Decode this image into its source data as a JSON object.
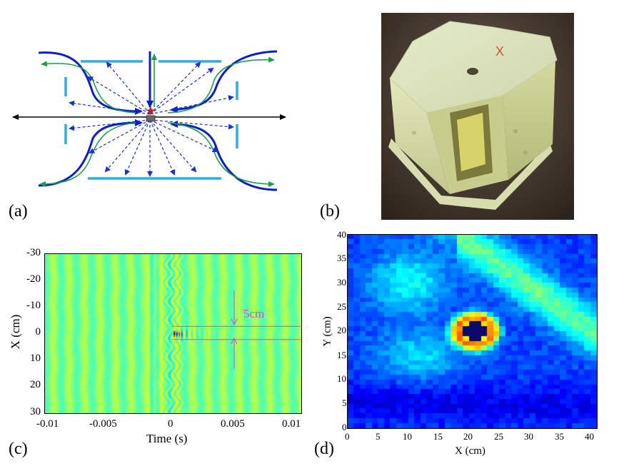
{
  "figure": {
    "panels": [
      {
        "id": "a",
        "label": "(a)"
      },
      {
        "id": "b",
        "label": "(b)"
      },
      {
        "id": "c",
        "label": "(c)"
      },
      {
        "id": "d",
        "label": "(d)"
      }
    ]
  },
  "photo": {
    "marking": "X"
  },
  "colors": {
    "field_blue": "#0a1fc8",
    "arrow_dashed_blue": "#1c2fd0",
    "green_line": "#1aa04a",
    "plate_cyan": "#2ab0e0",
    "star_red": "#c0202a",
    "annotation_magenta": "#e040e0"
  },
  "chart_data": [
    {
      "type": "heatmap",
      "panel": "c",
      "title": "",
      "xlabel": "Time (s)",
      "ylabel": "X (cm)",
      "xlim": [
        -0.01,
        0.01
      ],
      "ylim": [
        -30,
        30
      ],
      "x_ticks": [
        "-0.01",
        "-0.005",
        "0",
        "0.005",
        "0.01"
      ],
      "y_ticks": [
        "-30",
        "-20",
        "-10",
        "0",
        "10",
        "20",
        "30"
      ],
      "annotation": "5cm",
      "annotation_band_cm": [
        -2.5,
        2.5
      ]
    },
    {
      "type": "heatmap",
      "panel": "d",
      "title": "",
      "xlabel": "X (cm)",
      "ylabel": "Y (cm)",
      "xlim": [
        0,
        41
      ],
      "ylim": [
        0,
        40
      ],
      "x_ticks": [
        "0",
        "5",
        "10",
        "15",
        "20",
        "25",
        "30",
        "35",
        "40"
      ],
      "y_ticks": [
        "0",
        "5",
        "10",
        "15",
        "20",
        "25",
        "30",
        "35",
        "40"
      ],
      "peak_location_cm": [
        21,
        20
      ]
    }
  ]
}
